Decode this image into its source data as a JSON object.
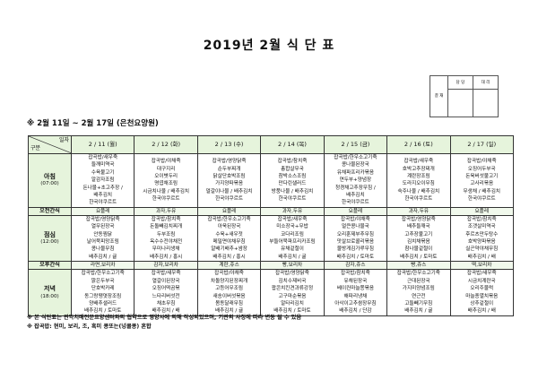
{
  "title": "2019년 2월 식 단 표",
  "approval": {
    "side_label": "결 재",
    "col1": "담 당",
    "col2": "대 리"
  },
  "subtitle": "※ 2월 11일 ~ 2월 17일 (은천요양원)",
  "table": {
    "corner_top": "일자",
    "corner_bottom": "구분",
    "days": [
      "2 / 11 (월)",
      "2 / 12 (화)",
      "2 / 13 (수)",
      "2 / 14 (목)",
      "2 / 15 (금)",
      "2 / 16 (토)",
      "2 / 17 (일)"
    ],
    "rows": [
      {
        "label": "아침",
        "time": "(07:00)",
        "type": "meal",
        "cells": [
          [
            "잡곡밥/새우죽",
            "들깨미역국",
            "수육불고기",
            "알감자조림",
            "돈나물+초고추장 /",
            "배추김치",
            "한국야쿠르트"
          ],
          [
            "잡곡밥/야채죽",
            "대구지리",
            "오이볏두리",
            "명엽채조림",
            "시금치나물 / 배추김치",
            "한국야쿠르트"
          ],
          [
            "잡곡밥/영양닭죽",
            "순두부찌개",
            "닭살단호박조림",
            "가지양파볶음",
            "얼갈이나물 / 배추김치",
            "한국야쿠르트"
          ],
          [
            "잡곡밥/참치죽",
            "총합살무국",
            "참박소스조림",
            "만다린샐러드",
            "방풍나물 / 배추김치",
            "한국야쿠르트"
          ],
          [
            "잡곡밥/한우소고기죽",
            "콩나물된장국",
            "유채파프리카볶음",
            "연두부+양념장",
            "청경채고추장무침 /",
            "배추김치",
            "한국야쿠르트"
          ],
          [
            "잡곡밥/새우죽",
            "호박고추장찌개",
            "계란장조림",
            "도라지오이무침",
            "숙주나물 / 배추김치",
            "한국야쿠르트"
          ],
          [
            "잡곡밥/야채죽",
            "오징어두부국",
            "돈육버섯불고기",
            "고사리볶음",
            "무생채 / 배추김치",
            "한국야쿠르트"
          ]
        ]
      },
      {
        "label": "오전간식",
        "type": "snack",
        "cells": [
          "요플레",
          "과자,두유",
          "요플레",
          "과자,두유",
          "요플레",
          "과자,두유",
          "요플레"
        ]
      },
      {
        "label": "점심",
        "time": "(12:00)",
        "type": "meal",
        "cells": [
          [
            "잡곡밥/영양닭죽",
            "열무된장국",
            "안동찜닭",
            "날어묵피망조림",
            "콩나물무침",
            "배추김치 / 귤"
          ],
          [
            "잡곡밥/참치죽",
            "돈돌빼김치찌개",
            "두부조림",
            "옥수수전야채전",
            "무미나리생채",
            "배추김치 / 홍시"
          ],
          [
            "잡곡밥/한우소고기죽",
            "아욱된장국",
            "수육+새우젓",
            "메밀면야채무침",
            "알배기배추+쌈장",
            "배추김치 / 홍시"
          ],
          [
            "잡곡밥/새우죽",
            "미소장국+무밥",
            "코다리조림",
            "부들어묵파프리카조림",
            "유채겉절이",
            "배추김치 / 귤"
          ],
          [
            "잡곡밥/야채죽",
            "얼큰콩나물국",
            "오리훈제부추무침",
            "맛살브로콜리볶음",
            "물방게김가루무침",
            "배추김치 / 토마토"
          ],
          [
            "잡곡밥/영양닭죽",
            "배추들깨국",
            "고추장불고기",
            "김치채볶음",
            "참나물겉절이",
            "배추김치 / 토마토"
          ],
          [
            "잡곡밥/참치죽",
            "조갯살미역국",
            "후르츠만두탕수",
            "호박양파볶음",
            "실곤약야채무침",
            "배추김치 / 배"
          ]
        ]
      },
      {
        "label": "오후간식",
        "type": "snack",
        "cells": [
          "라면,보리차",
          "감자,보리차",
          "계란,쥬스",
          "빵,보리차",
          "감자,쥬스",
          "빵,쥬스",
          "떡,보리차"
        ]
      },
      {
        "label": "저녁",
        "time": "(18:00)",
        "type": "meal",
        "cells": [
          [
            "잡곡밥/한우소고기죽",
            "맑은두부국",
            "단호박카레",
            "동그랑땡엿장조림",
            "양배추샐러드",
            "배추김치 / 토마토"
          ],
          [
            "잡곡밥/새우죽",
            "열갈이된장국",
            "오징어떡곰볶",
            "느타리버섯전",
            "채초무침",
            "배추김치 / 배"
          ],
          [
            "잡곡밥/야채죽",
            "차돌양지된장찌개",
            "고등어무조림",
            "새송이버섯볶음",
            "봄동달래무침",
            "배추김치 / 귤"
          ],
          [
            "잡곡밥/영양닭죽",
            "김치수제비국",
            "팝콘치킨견과류강정",
            "고구마순볶음",
            "알타리김치",
            "배추김치 / 토마토"
          ],
          [
            "잡곡밥/참치죽",
            "유채된장국",
            "베이컨마늘쫑볶음",
            "해파리냉채",
            "아삭이고추쌈장무침",
            "배추김치 / 단감"
          ],
          [
            "잡곡밥/한우소고기죽",
            "근대된장국",
            "가지미양념조림",
            "연근전",
            "고들빼기무침",
            "배추김치 / 귤"
          ],
          [
            "잡곡밥/새우죽",
            "시금치계란국",
            "오리주물럭",
            "마늘종멸치볶음",
            "상추겉절이",
            "배추김치 / 배"
          ]
        ]
      }
    ]
  },
  "notes": [
    "※ 본 식단표는 관악치매전문요양센터와의 협약으로 영양사에 의해 작성되었으며, 기관의 사정에 따라 변동 될 수 있음",
    "※ 잡곡밥: 현미, 보리, 조, 흑미 콩또는(넝쿨콩) 혼합"
  ],
  "colors": {
    "header_bg": "#e6f4dc",
    "snack_bg": "#f1f9ec"
  }
}
